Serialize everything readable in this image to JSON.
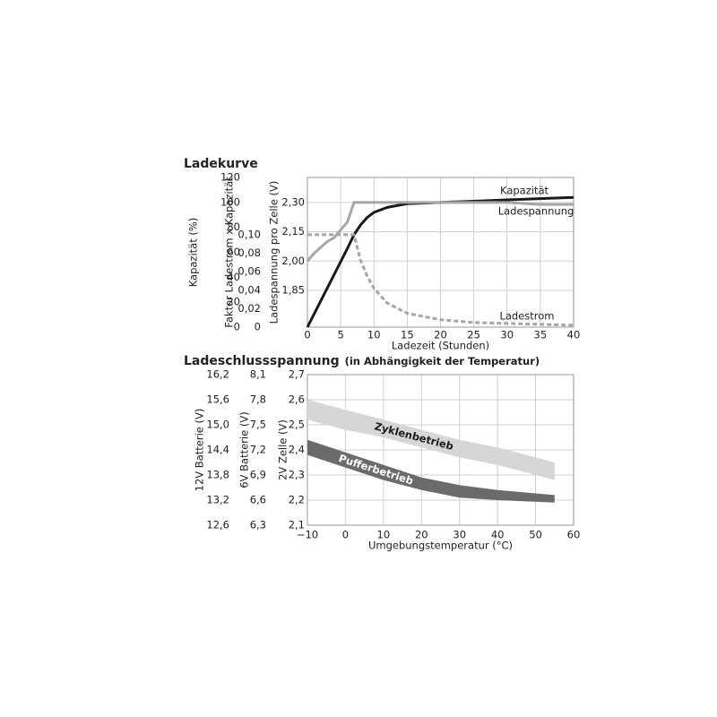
{
  "chart_data": [
    {
      "type": "line",
      "title": "Ladekurve",
      "xlabel": "Ladezeit (Stunden)",
      "ylabel": "Kapazität (%)",
      "y2label": "Faktor Ladestrom x Kapazität",
      "y3label": "Ladespannung pro Zelle (V)",
      "x": [
        0,
        1,
        2,
        3,
        4,
        5,
        6,
        7,
        8,
        9,
        10,
        12,
        15,
        20,
        25,
        30,
        35,
        40
      ],
      "xlim": [
        0,
        40
      ],
      "xticks": [
        0,
        5,
        10,
        15,
        20,
        25,
        30,
        35,
        40
      ],
      "ylim": [
        0,
        120
      ],
      "yticks": [
        0,
        20,
        40,
        60,
        80,
        100,
        120
      ],
      "y2lim": [
        0,
        0.162
      ],
      "y2ticks": [
        0,
        {
          "value": 0.02,
          "label": "0,02"
        },
        {
          "value": 0.04,
          "label": "0,04"
        },
        {
          "value": 0.06,
          "label": "0,06"
        },
        {
          "value": 0.08,
          "label": "0,08"
        },
        {
          "value": 0.1,
          "label": "0,10"
        }
      ],
      "y3lim": [
        1.662,
        2.428
      ],
      "y3ticks": [
        {
          "value": 1.85,
          "label": "1,85"
        },
        {
          "value": 2.0,
          "label": "2,00"
        },
        {
          "value": 2.15,
          "label": "2,15"
        },
        {
          "value": 2.3,
          "label": "2,30"
        }
      ],
      "grid": "y3",
      "series": [
        {
          "name": "Kapazität",
          "color": "#1a1a1a",
          "axis": "y",
          "values": [
            0,
            10.5,
            21,
            31.5,
            42,
            52.5,
            63,
            74,
            82,
            88,
            92,
            96,
            99,
            100,
            101,
            102,
            103,
            104
          ]
        },
        {
          "name": "Ladespannung",
          "color": "#a6a6a6",
          "axis": "y3",
          "values": [
            2.0,
            2.04,
            2.07,
            2.1,
            2.12,
            2.16,
            2.2,
            2.3,
            2.3,
            2.3,
            2.3,
            2.3,
            2.3,
            2.3,
            2.3,
            2.3,
            2.29,
            2.29
          ]
        },
        {
          "name": "Ladestrom",
          "color": "#a6a6a6",
          "axis": "y2",
          "dashed": true,
          "values": [
            0.1,
            0.1,
            0.1,
            0.1,
            0.1,
            0.1,
            0.1,
            0.1,
            0.072,
            0.055,
            0.042,
            0.026,
            0.015,
            0.008,
            0.005,
            0.004,
            0.003,
            0.002
          ]
        }
      ]
    },
    {
      "type": "band",
      "title": "Ladeschlussspannung",
      "subtitle": "(in Abhängigkeit der Temperatur)",
      "xlabel": "Umgebungstemperatur (°C)",
      "ylabel": "2V Zelle (V)",
      "y2label": "6V Batterie (V)",
      "y3label": "12V Batterie (V)",
      "x": [
        -10,
        0,
        10,
        20,
        30,
        40,
        55
      ],
      "xlim": [
        -10,
        60
      ],
      "xticks": [
        {
          "value": -10,
          "label": "−10"
        },
        0,
        10,
        20,
        30,
        40,
        50,
        60
      ],
      "ylim": [
        2.1,
        2.7
      ],
      "yticks": [
        {
          "value": 2.1,
          "label": "2,1"
        },
        {
          "value": 2.2,
          "label": "2,2"
        },
        {
          "value": 2.3,
          "label": "2,3"
        },
        {
          "value": 2.4,
          "label": "2,4"
        },
        {
          "value": 2.5,
          "label": "2,5"
        },
        {
          "value": 2.6,
          "label": "2,6"
        },
        {
          "value": 2.7,
          "label": "2,7"
        }
      ],
      "y2lim": [
        6.3,
        8.1
      ],
      "y2ticks": [
        {
          "value": 6.3,
          "label": "6,3"
        },
        {
          "value": 6.6,
          "label": "6,6"
        },
        {
          "value": 6.9,
          "label": "6,9"
        },
        {
          "value": 7.2,
          "label": "7,2"
        },
        {
          "value": 7.5,
          "label": "7,5"
        },
        {
          "value": 7.8,
          "label": "7,8"
        },
        {
          "value": 8.1,
          "label": "8,1"
        }
      ],
      "y3lim": [
        12.6,
        16.2
      ],
      "y3ticks": [
        {
          "value": 12.6,
          "label": "12,6"
        },
        {
          "value": 13.2,
          "label": "13,2"
        },
        {
          "value": 13.8,
          "label": "13,8"
        },
        {
          "value": 14.4,
          "label": "14,4"
        },
        {
          "value": 15.0,
          "label": "15,0"
        },
        {
          "value": 15.6,
          "label": "15,6"
        },
        {
          "value": 16.2,
          "label": "16,2"
        }
      ],
      "grid": "y",
      "series": [
        {
          "name": "Zyklenbetrieb",
          "color": "#d6d6d6",
          "low": [
            2.52,
            2.48,
            2.45,
            2.41,
            2.37,
            2.34,
            2.28
          ],
          "high": [
            2.6,
            2.56,
            2.52,
            2.48,
            2.44,
            2.41,
            2.35
          ]
        },
        {
          "name": "Pufferbetrieb",
          "color": "#6b6b6b",
          "low": [
            2.38,
            2.33,
            2.28,
            2.24,
            2.21,
            2.2,
            2.19
          ],
          "high": [
            2.44,
            2.39,
            2.34,
            2.29,
            2.26,
            2.24,
            2.22
          ]
        }
      ]
    }
  ]
}
